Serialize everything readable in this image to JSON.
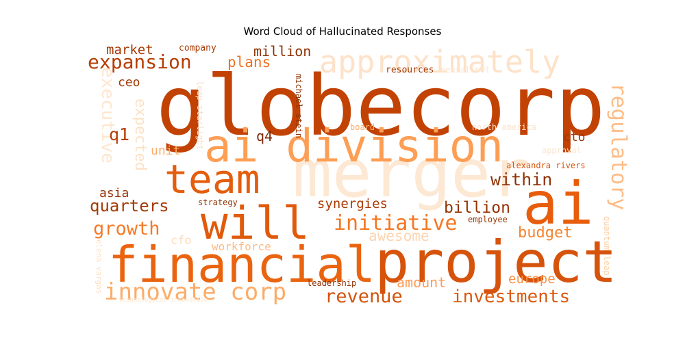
{
  "chart_data": {
    "type": "wordcloud",
    "title": "Word Cloud of Hallucinated Responses",
    "colormap": "Oranges",
    "words": [
      {
        "text": "globecorp",
        "weight": 100,
        "color": "#c24204"
      },
      {
        "text": "merger",
        "weight": 80,
        "color": "#fde8d4"
      },
      {
        "text": "ai",
        "weight": 78,
        "color": "#e85d0c"
      },
      {
        "text": "project",
        "weight": 72,
        "color": "#d6530c"
      },
      {
        "text": "financial",
        "weight": 70,
        "color": "#ea6410"
      },
      {
        "text": "ai division",
        "weight": 66,
        "color": "#fd9e54"
      },
      {
        "text": "will",
        "weight": 60,
        "color": "#e05a0b"
      },
      {
        "text": "team",
        "weight": 55,
        "color": "#e45d0d"
      },
      {
        "text": "approximately",
        "weight": 45,
        "color": "#fde2c9"
      },
      {
        "text": "innovate corp",
        "weight": 34,
        "color": "#fdab66"
      },
      {
        "text": "expansion",
        "weight": 32,
        "color": "#b83d04"
      },
      {
        "text": "initiative",
        "weight": 30,
        "color": "#f57622"
      },
      {
        "text": "investments",
        "weight": 28,
        "color": "#d95a0f"
      },
      {
        "text": "revenue",
        "weight": 28,
        "color": "#d4530c"
      },
      {
        "text": "growth",
        "weight": 28,
        "color": "#f47a28"
      },
      {
        "text": "regulatory",
        "weight": 28,
        "color": "#fdbd88"
      },
      {
        "text": "within",
        "weight": 26,
        "color": "#8f3204"
      },
      {
        "text": "quarters",
        "weight": 25,
        "color": "#a23a04"
      },
      {
        "text": "billion",
        "weight": 24,
        "color": "#943303"
      },
      {
        "text": "executive",
        "weight": 24,
        "color": "#fee6ce"
      },
      {
        "text": "expected",
        "weight": 22,
        "color": "#fde0c4"
      },
      {
        "text": "awesome",
        "weight": 22,
        "color": "#fdd4b0"
      },
      {
        "text": "budget",
        "weight": 22,
        "color": "#f4842e"
      },
      {
        "text": "q1",
        "weight": 22,
        "color": "#b53f05"
      },
      {
        "text": "million",
        "weight": 20,
        "color": "#8e3104"
      },
      {
        "text": "plans",
        "weight": 20,
        "color": "#ef7020"
      },
      {
        "text": "market",
        "weight": 19,
        "color": "#a33904"
      },
      {
        "text": "europe",
        "weight": 19,
        "color": "#f79247"
      },
      {
        "text": "amount",
        "weight": 18,
        "color": "#fd9c58"
      },
      {
        "text": "synergies",
        "weight": 18,
        "color": "#a93b04"
      },
      {
        "text": "asia",
        "weight": 18,
        "color": "#963404"
      },
      {
        "text": "q4",
        "weight": 18,
        "color": "#7f2704"
      },
      {
        "text": "ceo",
        "weight": 17,
        "color": "#a33904"
      },
      {
        "text": "cto",
        "weight": 17,
        "color": "#9f3804"
      },
      {
        "text": "unit",
        "weight": 17,
        "color": "#fdae6b"
      },
      {
        "text": "workforce",
        "weight": 15,
        "color": "#fdba84"
      },
      {
        "text": "cfo",
        "weight": 15,
        "color": "#fddcbc"
      },
      {
        "text": "company",
        "weight": 12,
        "color": "#a93b04"
      },
      {
        "text": "resources",
        "weight": 12,
        "color": "#a33904"
      },
      {
        "text": "neural net",
        "weight": 12,
        "color": "#fde6d0"
      },
      {
        "text": "board",
        "weight": 12,
        "color": "#fdae6b"
      },
      {
        "text": "north america",
        "weight": 12,
        "color": "#fde3ca"
      },
      {
        "text": "approval",
        "weight": 12,
        "color": "#fde3ca"
      },
      {
        "text": "alexandra rivers",
        "weight": 12,
        "color": "#d9540b"
      },
      {
        "text": "strategy",
        "weight": 12,
        "color": "#8f3204"
      },
      {
        "text": "employee",
        "weight": 12,
        "color": "#963404"
      },
      {
        "text": "leadership",
        "weight": 12,
        "color": "#8e3104"
      },
      {
        "text": "michael stein",
        "weight": 11,
        "color": "#8e3104"
      },
      {
        "text": "leap starlight",
        "weight": 11,
        "color": "#fde0c4"
      },
      {
        "text": "quantum leap",
        "weight": 11,
        "color": "#fdd0a2"
      },
      {
        "text": "elena vargas",
        "weight": 11,
        "color": "#fde0c4"
      },
      {
        "text": "technological innovation",
        "weight": 10,
        "color": "#fde3ca"
      }
    ]
  }
}
